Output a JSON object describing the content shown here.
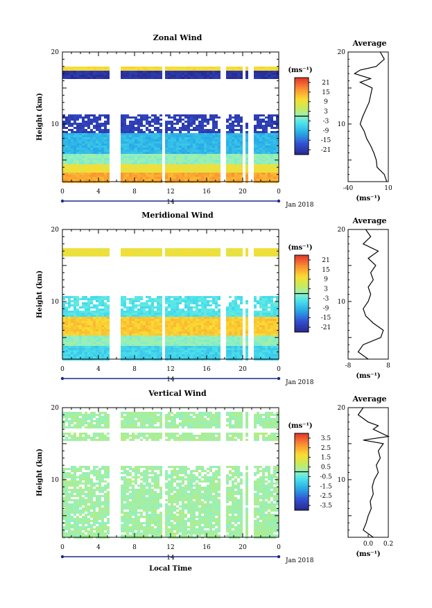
{
  "chart_data": [
    {
      "type": "heatmap",
      "title": "Zonal Wind",
      "ylabel": "Height (km)",
      "xlim": [
        0,
        24
      ],
      "ylim": [
        2,
        20
      ],
      "x_ticks": [
        "0",
        "4",
        "8",
        "12",
        "16",
        "20",
        "0"
      ],
      "y_ticks": [
        "10",
        "20"
      ],
      "date_bar_label": "14",
      "date_label": "Jan 2018",
      "colorbar": {
        "unit": "(ms⁻¹)",
        "labels": [
          "21",
          "15",
          "9",
          "3",
          "-3",
          "-9",
          "-15",
          "-21"
        ],
        "range": [
          -24,
          24
        ]
      },
      "data_gaps_hours": [
        [
          5.0,
          6.2
        ],
        [
          10.9,
          11.3
        ],
        [
          17.5,
          17.9
        ],
        [
          19.9,
          20.2
        ],
        [
          20.6,
          21.0
        ]
      ],
      "layers_km_value": [
        [
          2.0,
          3.5,
          15
        ],
        [
          3.5,
          4.5,
          9
        ],
        [
          4.5,
          6.0,
          0
        ],
        [
          6.0,
          9.0,
          -9
        ],
        [
          9.0,
          11.5,
          -20
        ],
        [
          16.5,
          17.6,
          -22
        ],
        [
          17.6,
          18.2,
          10
        ]
      ],
      "profile": {
        "title": "Average",
        "xlabel": "(ms⁻¹)",
        "xlim": [
          -40,
          10
        ],
        "x_ticks": [
          "-40",
          "10"
        ],
        "heights_km": [
          2,
          3,
          4,
          5,
          6,
          7,
          8,
          9,
          10,
          11,
          12,
          13,
          14,
          15,
          15.8,
          16.3,
          17,
          17.5,
          18,
          18.5,
          19,
          20
        ],
        "values": [
          8,
          5,
          -4,
          -5,
          -8,
          -12,
          -17,
          -20,
          -25,
          -22,
          -18,
          -14,
          -12,
          -10,
          -25,
          -12,
          -32,
          -25,
          -5,
          0,
          5,
          0
        ]
      }
    },
    {
      "type": "heatmap",
      "title": "Meridional Wind",
      "ylabel": "Height (km)",
      "xlim": [
        0,
        24
      ],
      "ylim": [
        2,
        20
      ],
      "x_ticks": [
        "0",
        "4",
        "8",
        "12",
        "16",
        "20",
        "0"
      ],
      "y_ticks": [
        "10",
        "20"
      ],
      "date_bar_label": "14",
      "date_label": "Jan 2018",
      "colorbar": {
        "unit": "(ms⁻¹)",
        "labels": [
          "21",
          "15",
          "9",
          "3",
          "-3",
          "-9",
          "-15",
          "-21"
        ],
        "range": [
          -24,
          24
        ]
      },
      "data_gaps_hours": [
        [
          5.0,
          6.2
        ],
        [
          10.9,
          11.3
        ],
        [
          17.5,
          17.9
        ],
        [
          19.9,
          20.2
        ],
        [
          20.6,
          21.0
        ]
      ],
      "layers_km_value": [
        [
          2.0,
          4.0,
          -6
        ],
        [
          4.0,
          5.5,
          0
        ],
        [
          5.5,
          8.0,
          12
        ],
        [
          8.0,
          11.0,
          -4
        ],
        [
          16.5,
          17.6,
          9
        ]
      ],
      "profile": {
        "title": "Average",
        "xlabel": "(ms⁻¹)",
        "xlim": [
          -8,
          8
        ],
        "x_ticks": [
          "-8",
          "8"
        ],
        "heights_km": [
          2,
          3,
          4,
          5,
          6,
          7,
          8,
          9,
          10,
          11,
          12,
          13,
          14,
          15,
          16,
          17,
          18,
          19,
          20
        ],
        "values": [
          0,
          -4,
          -2,
          5,
          6,
          2,
          -1,
          -2,
          0,
          1,
          0,
          2,
          1,
          3,
          0,
          4,
          -2,
          1,
          -1
        ]
      }
    },
    {
      "type": "heatmap",
      "title": "Vertical Wind",
      "ylabel": "Height (km)",
      "xlabel": "Local Time",
      "xlim": [
        0,
        24
      ],
      "ylim": [
        2,
        20
      ],
      "x_ticks": [
        "0",
        "4",
        "8",
        "12",
        "16",
        "20",
        "0"
      ],
      "y_ticks": [
        "10",
        "20"
      ],
      "date_bar_label": "14",
      "date_label": "Jan 2018",
      "colorbar": {
        "unit": "(ms⁻¹)",
        "labels": [
          "3.5",
          "2.5",
          "1.5",
          "0.5",
          "-0.5",
          "-1.5",
          "-2.5",
          "-3.5"
        ],
        "range": [
          -4,
          4
        ]
      },
      "data_gaps_hours": [
        [
          5.0,
          6.2
        ],
        [
          10.9,
          11.3
        ],
        [
          17.5,
          17.9
        ],
        [
          19.9,
          20.2
        ],
        [
          20.6,
          21.0
        ]
      ],
      "layers_km_value": [
        [
          2.0,
          12.0,
          0.2
        ],
        [
          15.5,
          16.8,
          0.3
        ],
        [
          17.2,
          19.5,
          0.2
        ]
      ],
      "profile": {
        "title": "Average",
        "xlabel": "(ms⁻¹)",
        "xlim": [
          -0.2,
          0.2
        ],
        "x_ticks": [
          "0.0",
          "0.2"
        ],
        "heights_km": [
          2,
          3,
          4,
          5,
          6,
          7,
          8,
          9,
          10,
          11,
          12,
          13,
          14,
          15,
          15.5,
          16,
          17,
          17.5,
          18,
          19,
          20
        ],
        "values": [
          0.05,
          -0.05,
          -0.02,
          0.0,
          0.03,
          0.02,
          0.05,
          0.04,
          0.06,
          0.1,
          0.08,
          0.12,
          0.1,
          0.15,
          -0.05,
          0.2,
          0.05,
          0.1,
          0.0,
          -0.1,
          -0.05
        ]
      }
    }
  ]
}
